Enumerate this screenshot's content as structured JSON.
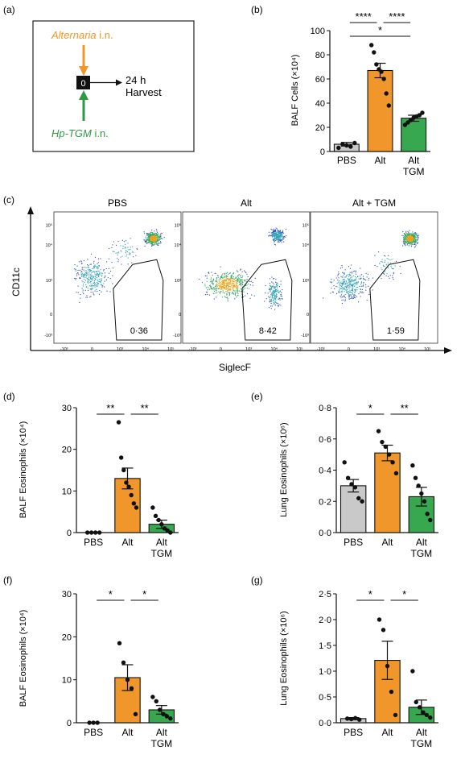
{
  "panels": {
    "a": {
      "letter": "(a)",
      "top_agent": "Alternaria",
      "top_route": " i.n.",
      "day": "0",
      "harvest_time": "24 h",
      "harvest_label": "Harvest",
      "bottom_agent": "Hp-TGM",
      "bottom_route": " i.n.",
      "colors": {
        "top": "#f0962a",
        "bottom": "#2f9a46"
      }
    },
    "b": {
      "letter": "(b)"
    },
    "c": {
      "letter": "(c)",
      "ylabel": "CD11c",
      "xlabel": "SiglecF",
      "titles": [
        "PBS",
        "Alt",
        "Alt + TGM"
      ],
      "gate_values": [
        "0·36",
        "8·42",
        "1·59"
      ],
      "x_ticks": [
        "-10³",
        "0",
        "10³",
        "10⁴",
        "10⁵"
      ],
      "y_ticks": [
        "10⁵",
        "10⁴",
        "10³",
        "0",
        "-10³"
      ]
    },
    "d": {
      "letter": "(d)"
    },
    "e": {
      "letter": "(e)"
    },
    "f": {
      "letter": "(f)"
    },
    "g": {
      "letter": "(g)"
    }
  },
  "colors": {
    "PBS": "#c9c9c9",
    "Alt": "#f0962a",
    "TGM": "#37a84f"
  },
  "chart_data": [
    {
      "id": "b",
      "type": "bar",
      "categories": [
        [
          "PBS"
        ],
        [
          "Alt"
        ],
        [
          "Alt",
          "TGM"
        ]
      ],
      "ylabel": "BALF Cells (×10⁴)",
      "ylim": [
        0,
        100
      ],
      "yticks": [
        0,
        20,
        40,
        60,
        80,
        100
      ],
      "yticklabels": [
        "0",
        "20",
        "40",
        "60",
        "80",
        "100"
      ],
      "values": [
        6,
        67,
        27.5
      ],
      "errors": [
        1.5,
        6,
        2.5
      ],
      "points": [
        [
          3,
          6,
          5,
          4,
          7
        ],
        [
          88,
          82,
          72,
          68,
          66,
          60,
          48,
          38
        ],
        [
          22,
          24,
          26,
          28,
          29,
          30,
          32
        ]
      ],
      "significance": [
        {
          "from": 0,
          "to": 1,
          "label": "****",
          "level": 1
        },
        {
          "from": 1,
          "to": 2,
          "label": "****",
          "level": 1
        },
        {
          "from": 0,
          "to": 2,
          "label": "*",
          "level": 0
        }
      ]
    },
    {
      "id": "d",
      "type": "bar",
      "categories": [
        [
          "PBS"
        ],
        [
          "Alt"
        ],
        [
          "Alt",
          "TGM"
        ]
      ],
      "ylabel": "BALF Eosinophils  (×10⁴)",
      "ylim": [
        0,
        30
      ],
      "yticks": [
        0,
        10,
        20,
        30
      ],
      "yticklabels": [
        "0",
        "10",
        "20",
        "30"
      ],
      "values": [
        0,
        13,
        2
      ],
      "errors": [
        0.1,
        2.5,
        1
      ],
      "points": [
        [
          0,
          0,
          0,
          0
        ],
        [
          26.5,
          18,
          15,
          12,
          11,
          9,
          7,
          6
        ],
        [
          6,
          4,
          3,
          2,
          1,
          0.5,
          0
        ]
      ],
      "significance": [
        {
          "from": 0,
          "to": 1,
          "label": "**",
          "level": 0
        },
        {
          "from": 1,
          "to": 2,
          "label": "**",
          "level": 0
        }
      ]
    },
    {
      "id": "e",
      "type": "bar",
      "categories": [
        [
          "PBS"
        ],
        [
          "Alt"
        ],
        [
          "Alt",
          "TGM"
        ]
      ],
      "ylabel": "Lung Eosinophils (×10⁶)",
      "ylim": [
        0,
        0.8
      ],
      "yticks": [
        0,
        0.2,
        0.4,
        0.6,
        0.8
      ],
      "yticklabels": [
        "0·0",
        "0·2",
        "0·4",
        "0·6",
        "0·8"
      ],
      "values": [
        0.3,
        0.51,
        0.23
      ],
      "errors": [
        0.04,
        0.05,
        0.06
      ],
      "points": [
        [
          0.45,
          0.35,
          0.31,
          0.29,
          0.22,
          0.2
        ],
        [
          0.65,
          0.58,
          0.55,
          0.5,
          0.45,
          0.38
        ],
        [
          0.43,
          0.35,
          0.3,
          0.25,
          0.2,
          0.12,
          0.08
        ]
      ],
      "significance": [
        {
          "from": 0,
          "to": 1,
          "label": "*",
          "level": 0
        },
        {
          "from": 1,
          "to": 2,
          "label": "**",
          "level": 0
        }
      ]
    },
    {
      "id": "f",
      "type": "bar",
      "categories": [
        [
          "PBS"
        ],
        [
          "Alt"
        ],
        [
          "Alt",
          "TGM"
        ]
      ],
      "ylabel": "BALF Eosinophils (×10⁴)",
      "ylim": [
        0,
        30
      ],
      "yticks": [
        0,
        10,
        20,
        30
      ],
      "yticklabels": [
        "0",
        "10",
        "20",
        "30"
      ],
      "values": [
        0,
        10.5,
        3
      ],
      "errors": [
        0.1,
        3,
        1
      ],
      "points": [
        [
          0,
          0,
          0
        ],
        [
          18.5,
          14,
          10,
          8,
          2
        ],
        [
          6,
          5,
          3,
          2,
          1.5,
          1
        ]
      ],
      "significance": [
        {
          "from": 0,
          "to": 1,
          "label": "*",
          "level": 0
        },
        {
          "from": 1,
          "to": 2,
          "label": "*",
          "level": 0
        }
      ]
    },
    {
      "id": "g",
      "type": "bar",
      "categories": [
        [
          "PBS"
        ],
        [
          "Alt"
        ],
        [
          "Alt",
          "TGM"
        ]
      ],
      "ylabel": "Lung Eosinophils (×10⁶)",
      "ylim": [
        0,
        2.5
      ],
      "yticks": [
        0,
        0.5,
        1.0,
        1.5,
        2.0,
        2.5
      ],
      "yticklabels": [
        "0·0",
        "0·5",
        "1·0",
        "1·5",
        "2·0",
        "2·5"
      ],
      "values": [
        0.08,
        1.21,
        0.3
      ],
      "errors": [
        0.02,
        0.37,
        0.14
      ],
      "points": [
        [
          0.08,
          0.07,
          0.09,
          0.06
        ],
        [
          2.0,
          1.8,
          1.1,
          0.6,
          0.15
        ],
        [
          1.0,
          0.4,
          0.3,
          0.2,
          0.15,
          0.1
        ]
      ],
      "significance": [
        {
          "from": 0,
          "to": 1,
          "label": "*",
          "level": 0
        },
        {
          "from": 1,
          "to": 2,
          "label": "*",
          "level": 0
        }
      ]
    }
  ]
}
